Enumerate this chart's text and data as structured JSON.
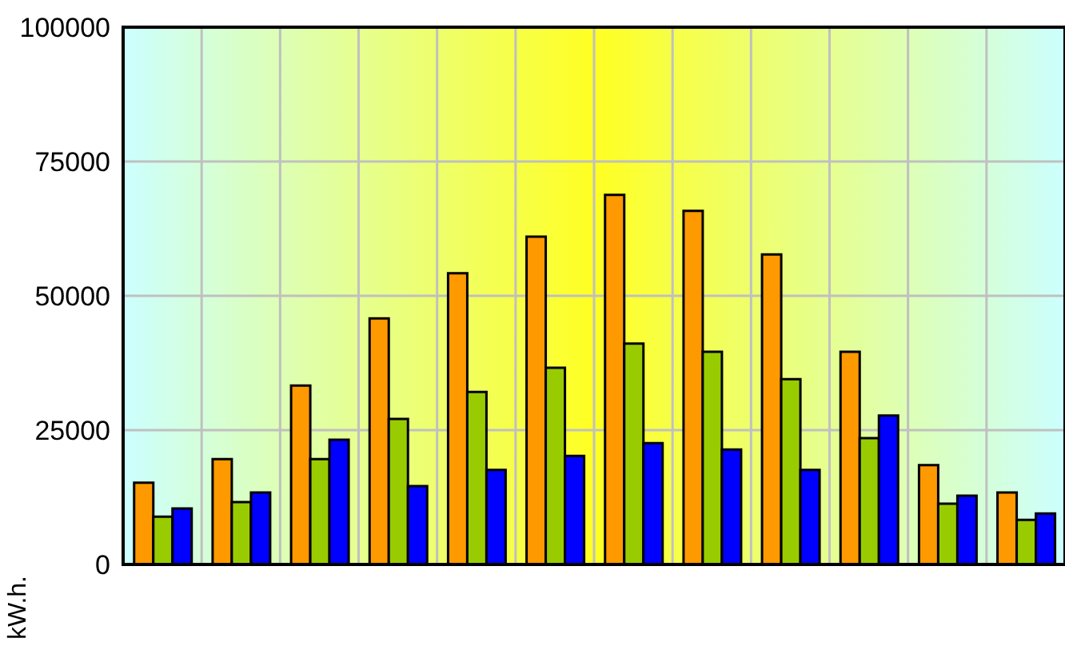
{
  "chart_data": {
    "type": "bar",
    "ylabel": "kW.h.",
    "categories": [
      null,
      null,
      null,
      null,
      null,
      null,
      null,
      null,
      null,
      null,
      null,
      null
    ],
    "series": [
      {
        "color": "#ff9900",
        "values": [
          15200,
          19600,
          33300,
          45800,
          54200,
          61000,
          68800,
          65800,
          57700,
          39600,
          18500,
          13400
        ]
      },
      {
        "color": "#99cc00",
        "values": [
          8900,
          11600,
          19600,
          27100,
          32100,
          36600,
          41100,
          39600,
          34500,
          23500,
          11300,
          8300
        ]
      },
      {
        "color": "#0000ff",
        "values": [
          10400,
          13400,
          23200,
          14600,
          17600,
          20200,
          22600,
          21400,
          17600,
          27700,
          12800,
          9500
        ]
      }
    ],
    "ylim": [
      0,
      100000
    ],
    "yticks": [
      0,
      25000,
      50000,
      75000,
      100000
    ],
    "grid": true,
    "legend": false
  }
}
